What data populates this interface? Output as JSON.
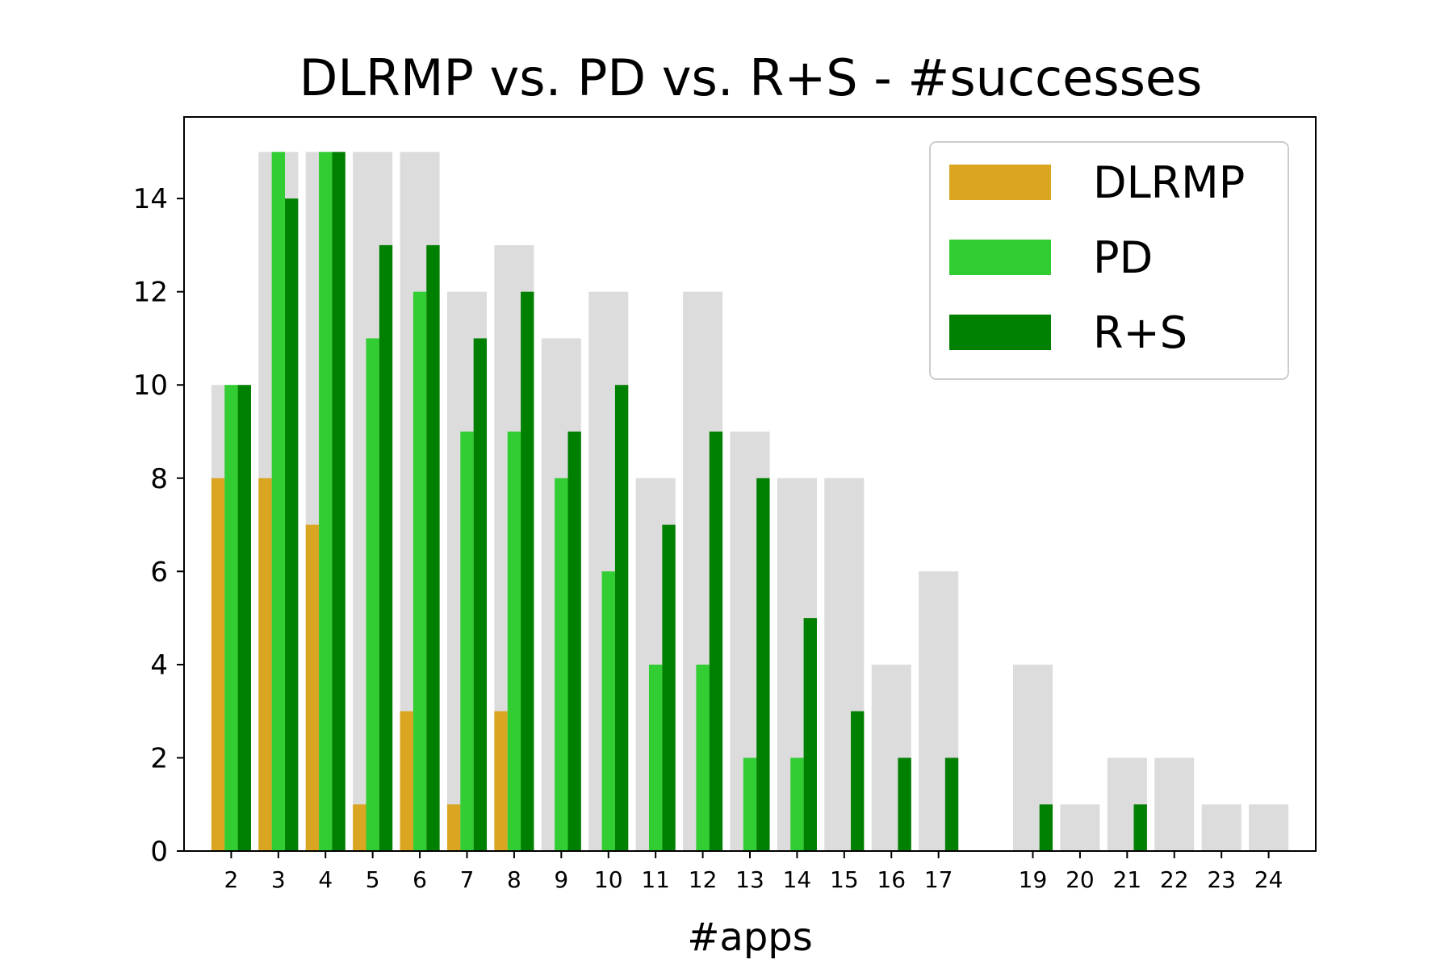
{
  "chart_data": {
    "type": "bar",
    "title": "DLRMP vs. PD vs. R+S - #successes",
    "xlabel": "#apps",
    "ylabel": "",
    "x": [
      2,
      3,
      4,
      5,
      6,
      7,
      8,
      9,
      10,
      11,
      12,
      13,
      14,
      15,
      16,
      17,
      19,
      20,
      21,
      22,
      23,
      24
    ],
    "total": [
      10,
      15,
      15,
      15,
      15,
      12,
      13,
      11,
      12,
      8,
      12,
      9,
      8,
      8,
      4,
      6,
      4,
      1,
      2,
      2,
      1,
      1
    ],
    "series": [
      {
        "name": "DLRMP",
        "color": "#daa520",
        "values": [
          8,
          8,
          7,
          1,
          3,
          1,
          3,
          0,
          0,
          0,
          0,
          0,
          0,
          0,
          0,
          0,
          0,
          0,
          0,
          0,
          0,
          0
        ]
      },
      {
        "name": "PD",
        "color": "#32cd32",
        "values": [
          10,
          15,
          15,
          11,
          12,
          9,
          9,
          8,
          6,
          4,
          4,
          2,
          2,
          0,
          0,
          0,
          0,
          0,
          0,
          0,
          0,
          0
        ]
      },
      {
        "name": "R+S",
        "color": "#008000",
        "values": [
          10,
          14,
          15,
          13,
          13,
          11,
          12,
          9,
          10,
          7,
          9,
          8,
          5,
          3,
          2,
          2,
          1,
          0,
          1,
          0,
          0,
          0
        ]
      }
    ],
    "total_color": "#dcdcdc",
    "yticks": [
      0,
      2,
      4,
      6,
      8,
      10,
      12,
      14
    ],
    "ylim": [
      0,
      15.75
    ],
    "xlim": [
      1.0,
      25.0
    ],
    "legend_position": "top-right",
    "grid": false
  }
}
